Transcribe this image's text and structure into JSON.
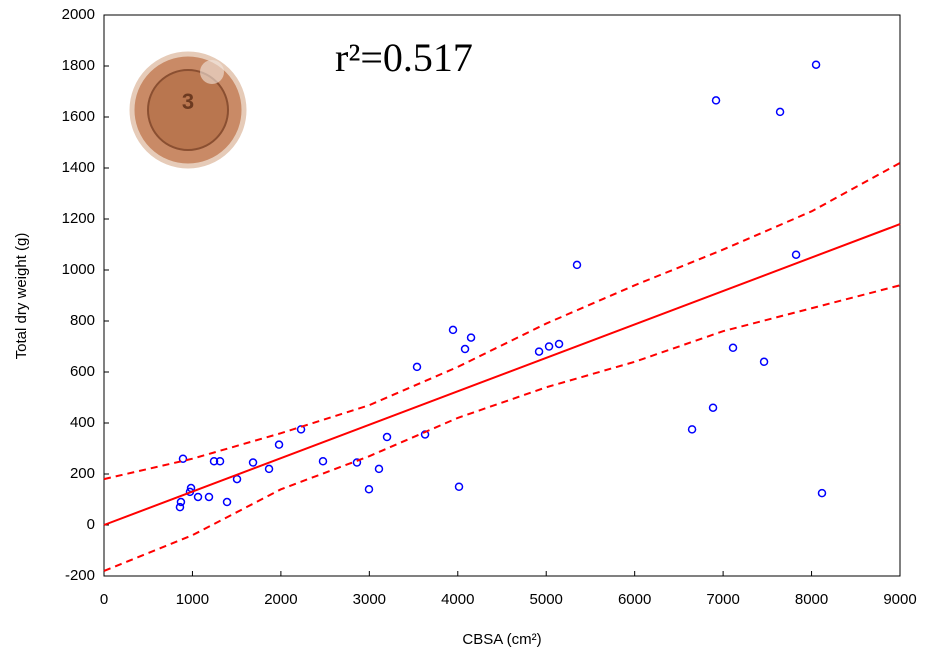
{
  "chart_data": {
    "type": "scatter",
    "annotation": "r²=0.517",
    "badge": "3",
    "x_label": "CBSA (cm²)",
    "y_label": "Total dry weight (g)",
    "xlim": [
      0,
      9000
    ],
    "xticks": [
      0,
      1000,
      2000,
      3000,
      4000,
      5000,
      6000,
      7000,
      8000,
      9000
    ],
    "ylim": [
      -200,
      2000
    ],
    "yticks": [
      -200,
      0,
      200,
      400,
      600,
      800,
      1000,
      1200,
      1400,
      1600,
      1800,
      2000
    ],
    "series": [
      {
        "style": "points",
        "color": "#0000ff",
        "x": [
          859,
          870,
          893,
          972,
          984,
          1063,
          1187,
          1244,
          1312,
          1391,
          1504,
          1685,
          1866,
          1979,
          2228,
          2476,
          2860,
          2996,
          3109,
          3200,
          3539,
          3630,
          3946,
          4014,
          4082,
          4150,
          4919,
          5032,
          5145,
          5348,
          6649,
          6886,
          6920,
          7112,
          7463,
          7644,
          7825,
          8051,
          8118
        ],
        "values": [
          70,
          90,
          260,
          130,
          145,
          110,
          110,
          250,
          250,
          90,
          180,
          245,
          220,
          315,
          375,
          250,
          245,
          140,
          220,
          345,
          620,
          355,
          765,
          150,
          690,
          735,
          680,
          700,
          710,
          1020,
          375,
          460,
          1665,
          695,
          640,
          1620,
          1060,
          1805,
          125
        ]
      },
      {
        "style": "solid",
        "color": "#ff0000",
        "x": [
          0,
          9000
        ],
        "values": [
          0,
          1180
        ]
      },
      {
        "style": "dashed",
        "color": "#ff0000",
        "x": [
          0,
          1000,
          2000,
          3000,
          4000,
          5000,
          6000,
          7000,
          8000,
          9000
        ],
        "values": [
          180,
          260,
          360,
          470,
          620,
          790,
          940,
          1080,
          1230,
          1420
        ]
      },
      {
        "style": "dashed",
        "color": "#ff0000",
        "x": [
          0,
          1000,
          2000,
          3000,
          4000,
          5000,
          6000,
          7000,
          8000,
          9000
        ],
        "values": [
          -180,
          -40,
          140,
          270,
          420,
          540,
          640,
          760,
          850,
          940
        ]
      }
    ]
  }
}
